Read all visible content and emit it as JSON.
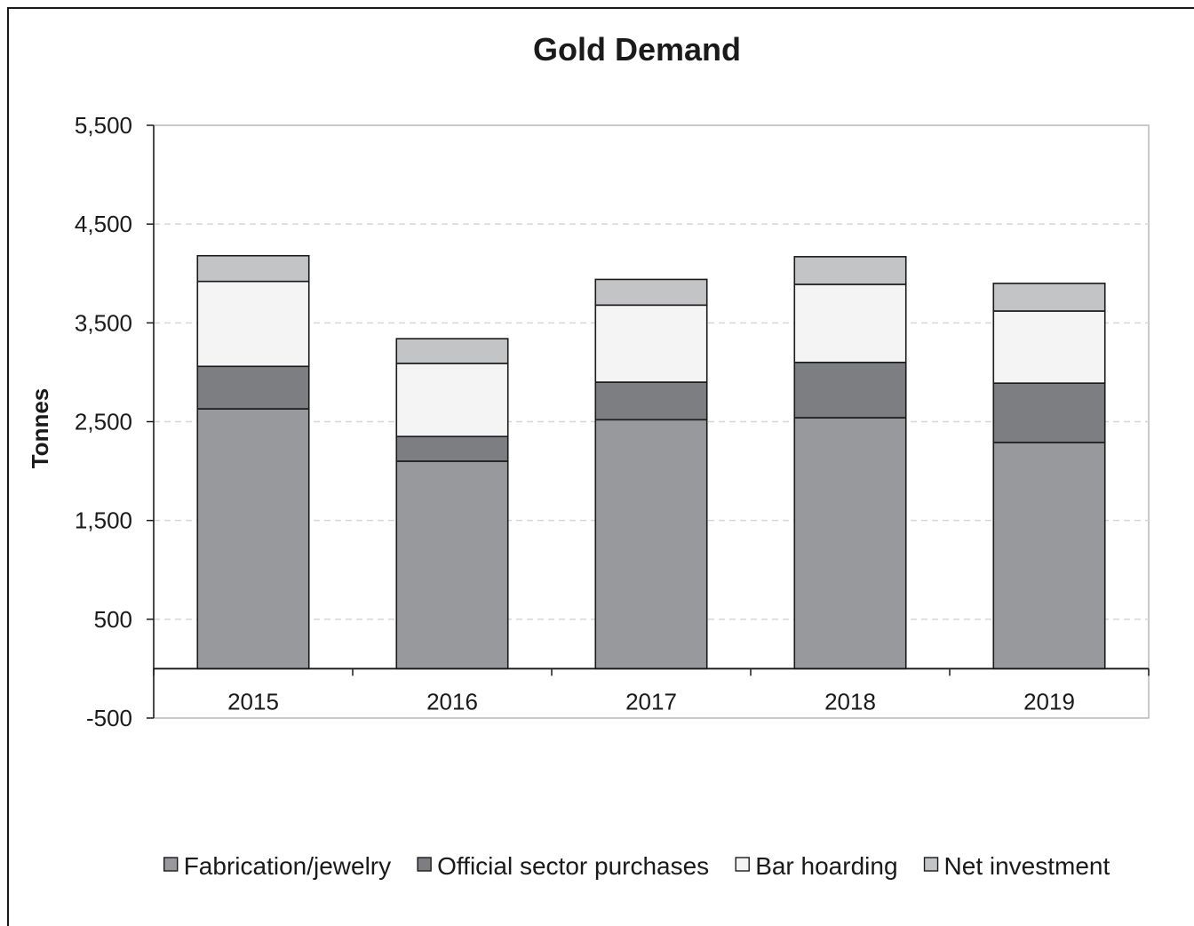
{
  "chart_data": {
    "type": "bar",
    "stacked": true,
    "title": "Gold Demand",
    "xlabel": "",
    "ylabel": "Tonnes",
    "categories": [
      "2015",
      "2016",
      "2017",
      "2018",
      "2019"
    ],
    "ylim": [
      -500,
      5500
    ],
    "yticks": [
      -500,
      500,
      1500,
      2500,
      3500,
      4500,
      5500
    ],
    "ytick_labels": [
      "-500",
      "500",
      "1,500",
      "2,500",
      "3,500",
      "4,500",
      "5,500"
    ],
    "grid": true,
    "legend_position": "bottom",
    "series": [
      {
        "name": "Fabrication/jewelry",
        "color": "#98999c",
        "values": [
          2630,
          2100,
          2520,
          2540,
          2290
        ]
      },
      {
        "name": "Official sector purchases",
        "color": "#7d7e81",
        "values": [
          430,
          250,
          380,
          560,
          600
        ]
      },
      {
        "name": "Bar hoarding",
        "color": "#f4f4f4",
        "values": [
          860,
          740,
          780,
          790,
          730
        ]
      },
      {
        "name": "Net investment",
        "color": "#c3c4c6",
        "values": [
          260,
          250,
          260,
          280,
          280
        ]
      }
    ]
  }
}
